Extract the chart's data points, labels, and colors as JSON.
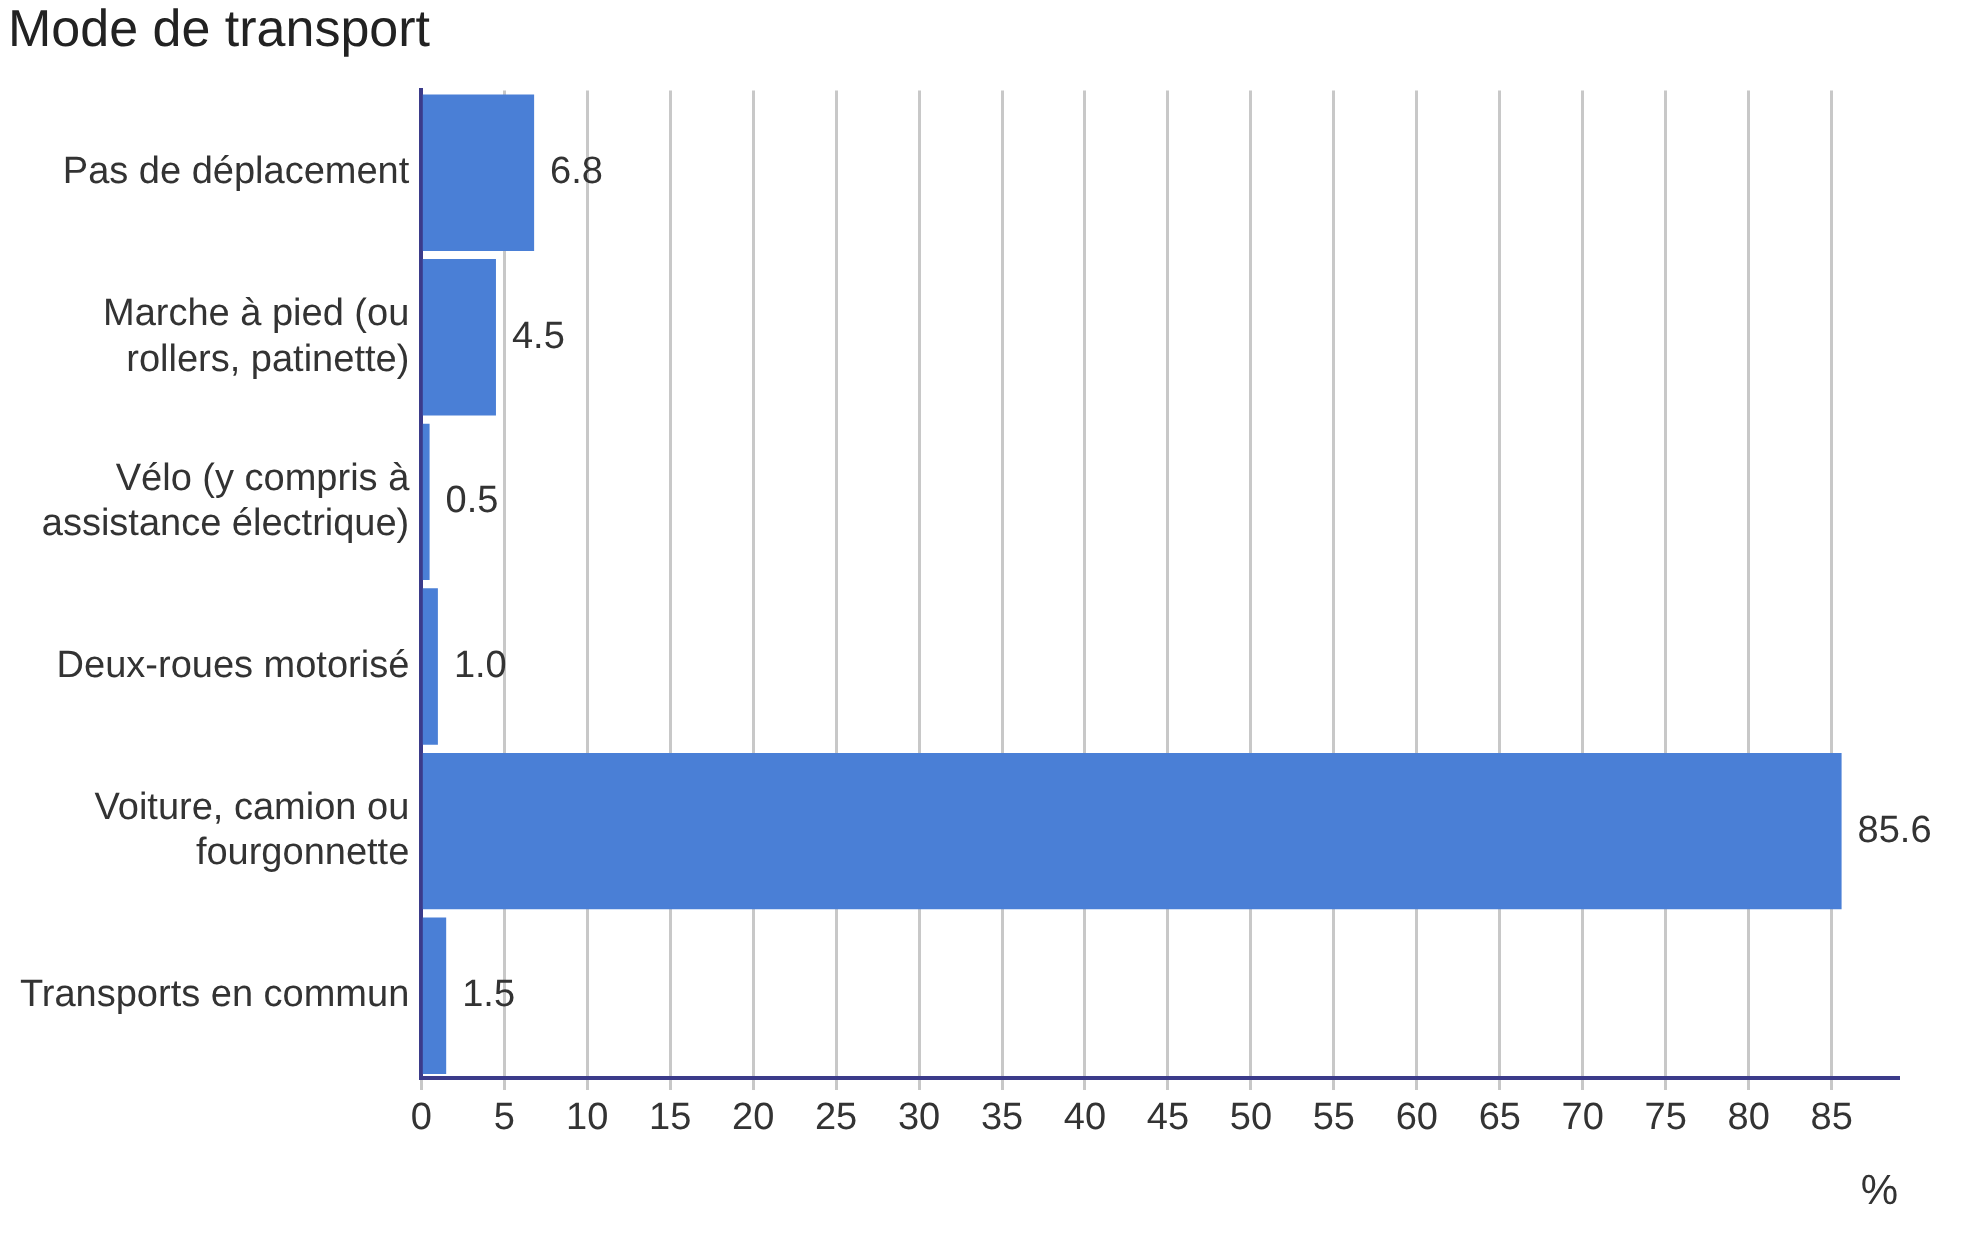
{
  "chart_data": {
    "type": "bar",
    "orientation": "horizontal",
    "title": "Mode de transport",
    "xlabel": "%",
    "categories": [
      "Pas de déplacement",
      "Marche à pied (ou rollers, patinette)",
      "Vélo (y compris à assistance électrique)",
      "Deux-roues motorisé",
      "Voiture, camion ou fourgonnette",
      "Transports en commun"
    ],
    "values": [
      6.8,
      4.5,
      0.5,
      1.0,
      85.6,
      1.5
    ],
    "value_labels": [
      "6.8",
      "4.5",
      "0.5",
      "1.0",
      "85.6",
      "1.5"
    ],
    "color": "#4a7fd6",
    "xlim": [
      0,
      89
    ],
    "xticks": [
      0,
      5,
      10,
      15,
      20,
      25,
      30,
      35,
      40,
      45,
      50,
      55,
      60,
      65,
      70,
      75,
      80,
      85
    ],
    "grid": "x",
    "legend": false
  }
}
